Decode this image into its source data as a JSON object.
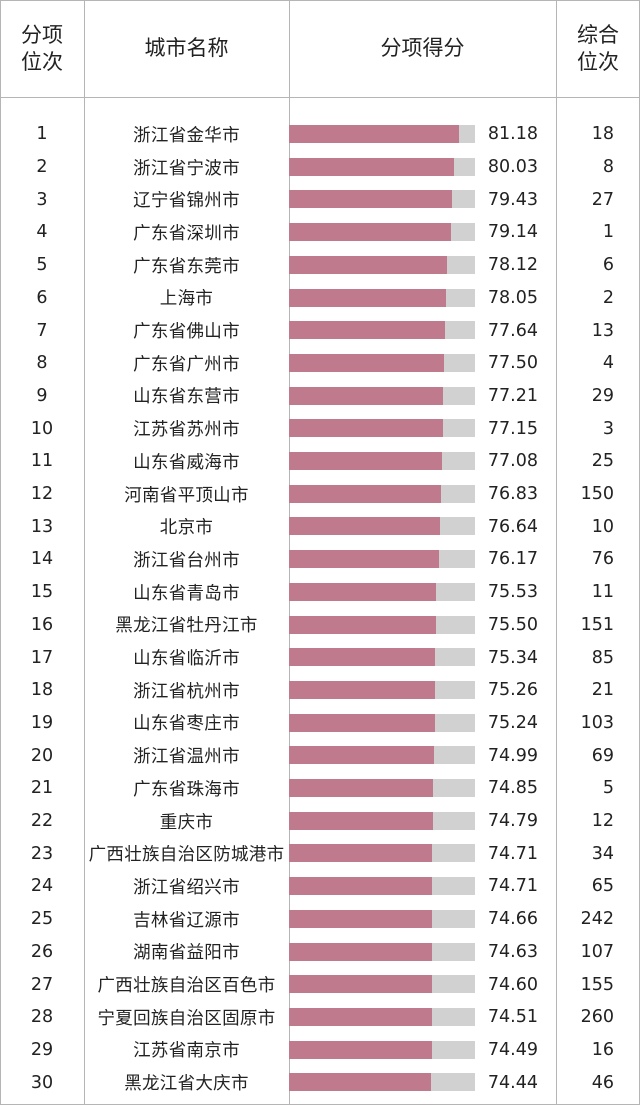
{
  "headers": {
    "rank": "分项\n位次",
    "city": "城市名称",
    "score": "分项得分",
    "overall": "综合\n位次"
  },
  "colors": {
    "bar": "#c07a8d",
    "track": "#d1d1d1",
    "grid": "#b5b5b5"
  },
  "score_scale": {
    "min": 40,
    "max": 85
  },
  "rows": [
    {
      "rank": "1",
      "city": "浙江省金华市",
      "score": "81.18",
      "overall": "18"
    },
    {
      "rank": "2",
      "city": "浙江省宁波市",
      "score": "80.03",
      "overall": "8"
    },
    {
      "rank": "3",
      "city": "辽宁省锦州市",
      "score": "79.43",
      "overall": "27"
    },
    {
      "rank": "4",
      "city": "广东省深圳市",
      "score": "79.14",
      "overall": "1"
    },
    {
      "rank": "5",
      "city": "广东省东莞市",
      "score": "78.12",
      "overall": "6"
    },
    {
      "rank": "6",
      "city": "上海市",
      "score": "78.05",
      "overall": "2"
    },
    {
      "rank": "7",
      "city": "广东省佛山市",
      "score": "77.64",
      "overall": "13"
    },
    {
      "rank": "8",
      "city": "广东省广州市",
      "score": "77.50",
      "overall": "4"
    },
    {
      "rank": "9",
      "city": "山东省东营市",
      "score": "77.21",
      "overall": "29"
    },
    {
      "rank": "10",
      "city": "江苏省苏州市",
      "score": "77.15",
      "overall": "3"
    },
    {
      "rank": "11",
      "city": "山东省威海市",
      "score": "77.08",
      "overall": "25"
    },
    {
      "rank": "12",
      "city": "河南省平顶山市",
      "score": "76.83",
      "overall": "150"
    },
    {
      "rank": "13",
      "city": "北京市",
      "score": "76.64",
      "overall": "10"
    },
    {
      "rank": "14",
      "city": "浙江省台州市",
      "score": "76.17",
      "overall": "76"
    },
    {
      "rank": "15",
      "city": "山东省青岛市",
      "score": "75.53",
      "overall": "11"
    },
    {
      "rank": "16",
      "city": "黑龙江省牡丹江市",
      "score": "75.50",
      "overall": "151"
    },
    {
      "rank": "17",
      "city": "山东省临沂市",
      "score": "75.34",
      "overall": "85"
    },
    {
      "rank": "18",
      "city": "浙江省杭州市",
      "score": "75.26",
      "overall": "21"
    },
    {
      "rank": "19",
      "city": "山东省枣庄市",
      "score": "75.24",
      "overall": "103"
    },
    {
      "rank": "20",
      "city": "浙江省温州市",
      "score": "74.99",
      "overall": "69"
    },
    {
      "rank": "21",
      "city": "广东省珠海市",
      "score": "74.85",
      "overall": "5"
    },
    {
      "rank": "22",
      "city": "重庆市",
      "score": "74.79",
      "overall": "12"
    },
    {
      "rank": "23",
      "city": "广西壮族自治区防城港市",
      "score": "74.71",
      "overall": "34"
    },
    {
      "rank": "24",
      "city": "浙江省绍兴市",
      "score": "74.71",
      "overall": "65"
    },
    {
      "rank": "25",
      "city": "吉林省辽源市",
      "score": "74.66",
      "overall": "242"
    },
    {
      "rank": "26",
      "city": "湖南省益阳市",
      "score": "74.63",
      "overall": "107"
    },
    {
      "rank": "27",
      "city": "广西壮族自治区百色市",
      "score": "74.60",
      "overall": "155"
    },
    {
      "rank": "28",
      "city": "宁夏回族自治区固原市",
      "score": "74.51",
      "overall": "260"
    },
    {
      "rank": "29",
      "city": "江苏省南京市",
      "score": "74.49",
      "overall": "16"
    },
    {
      "rank": "30",
      "city": "黑龙江省大庆市",
      "score": "74.44",
      "overall": "46"
    }
  ]
}
